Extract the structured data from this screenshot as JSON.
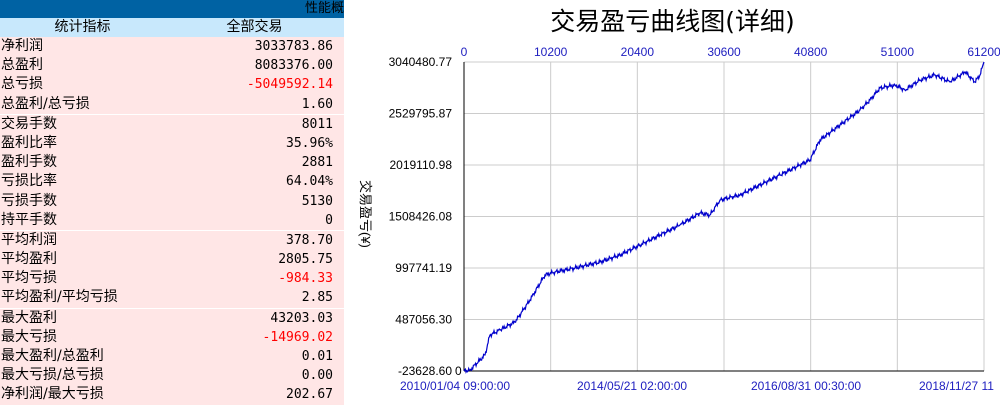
{
  "panel": {
    "title": "性能概",
    "header": {
      "metric": "统计指标",
      "all": "全部交易"
    },
    "rows": [
      {
        "label": "净利润",
        "value": "3033783.86"
      },
      {
        "label": "总盈利",
        "value": "8083376.00"
      },
      {
        "label": "总亏损",
        "value": "-5049592.14",
        "negative": true
      },
      {
        "label": "总盈利/总亏损",
        "value": "1.60"
      },
      {
        "label": "交易手数",
        "value": "8011",
        "sep": true
      },
      {
        "label": "盈利比率",
        "value": "35.96%"
      },
      {
        "label": "盈利手数",
        "value": "2881"
      },
      {
        "label": "亏损比率",
        "value": "64.04%"
      },
      {
        "label": "亏损手数",
        "value": "5130"
      },
      {
        "label": "持平手数",
        "value": "0"
      },
      {
        "label": "平均利润",
        "value": "378.70",
        "sep": true
      },
      {
        "label": "平均盈利",
        "value": "2805.75"
      },
      {
        "label": "平均亏损",
        "value": "-984.33",
        "negative": true
      },
      {
        "label": "平均盈利/平均亏损",
        "value": "2.85"
      },
      {
        "label": "最大盈利",
        "value": "43203.03",
        "sep": true
      },
      {
        "label": "最大亏损",
        "value": "-14969.02",
        "negative": true
      },
      {
        "label": "最大盈利/总盈利",
        "value": "0.01"
      },
      {
        "label": "最大亏损/总亏损",
        "value": "0.00"
      },
      {
        "label": "净利润/最大亏损",
        "value": "202.67"
      }
    ]
  },
  "chart_data": {
    "type": "line",
    "title": "交易盈亏曲线图(详细)",
    "ylabel": "交易盈亏(¥)",
    "ylim": [
      -23628.6,
      3040480.77
    ],
    "xlim": [
      0,
      61200
    ],
    "y_ticks": [
      "3040480.77",
      "2529795.87",
      "2019110.98",
      "1508426.08",
      "997741.19",
      "487056.30",
      "-23628.60"
    ],
    "x_top_ticks": [
      "0",
      "10200",
      "20400",
      "30600",
      "40800",
      "51000",
      "61200"
    ],
    "x_bottom_ticks": [
      "2010/01/04 09:00:00",
      "2014/05/21 02:00:00",
      "2016/08/31 00:30:00",
      "2018/11/27 11"
    ],
    "y_origin_label": "0",
    "grid": true,
    "colors": {
      "line": "#0000cc",
      "tick_text": "#2020c0",
      "grid": "#cccccc"
    },
    "x": [
      0,
      706,
      2471,
      3060,
      4237,
      6002,
      7768,
      9533,
      10710,
      13064,
      16006,
      18360,
      20713,
      23067,
      25421,
      27775,
      28952,
      30129,
      32482,
      34836,
      37190,
      39544,
      40721,
      41898,
      44251,
      46605,
      47782,
      48959,
      50725,
      51902,
      53667,
      55432,
      57198,
      58963,
      60140,
      60729,
      61200
    ],
    "y": [
      -23628,
      -13700,
      135093,
      333413,
      382993,
      462321,
      680473,
      928373,
      958121,
      997785,
      1057281,
      1126693,
      1225853,
      1325013,
      1424173,
      1543165,
      1523333,
      1672073,
      1721653,
      1820813,
      1919973,
      2019133,
      2068713,
      2267033,
      2415773,
      2564513,
      2663673,
      2782665,
      2812413,
      2762833,
      2861993,
      2911573,
      2842161,
      2941321,
      2842161,
      2911573,
      3040481
    ]
  }
}
